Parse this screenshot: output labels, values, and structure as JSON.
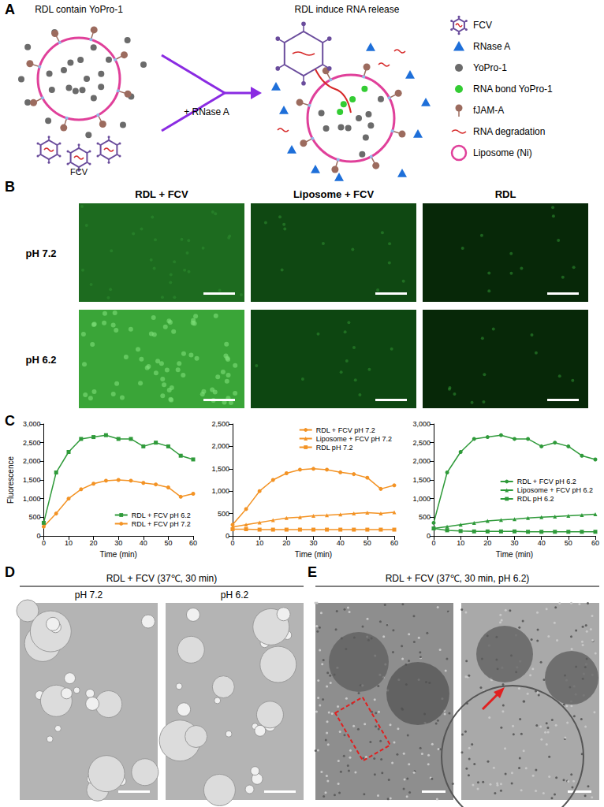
{
  "panel_labels": [
    "A",
    "B",
    "C",
    "D",
    "E"
  ],
  "schematic": {
    "left_title": "RDL contain YoPro-1",
    "right_title": "RDL induce RNA release",
    "arrow_label": "+ RNase A",
    "virus_label": "FCV",
    "key": [
      "FCV",
      "RNase A",
      "YoPro-1",
      "RNA bond YoPro-1",
      "fJAM-A",
      "RNA degradation",
      "Liposome (Ni)"
    ]
  },
  "fluorescence_images": {
    "columns": [
      "RDL + FCV",
      "Liposome + FCV",
      "RDL"
    ],
    "rows": [
      "pH 7.2",
      "pH 6.2"
    ]
  },
  "panel_D": {
    "title": "RDL + FCV (37℃, 30 min)",
    "images": [
      "pH 7.2",
      "pH 6.2"
    ]
  },
  "panel_E": {
    "title": "RDL + FCV (37℃, 30 min, pH 6.2)"
  },
  "chart_data": [
    {
      "type": "line",
      "xlabel": "Time (min)",
      "ylabel": "Fluorescence",
      "x": [
        0,
        5,
        10,
        15,
        20,
        25,
        30,
        35,
        40,
        45,
        50,
        55,
        60
      ],
      "xlim": [
        0,
        60
      ],
      "xticks": [
        0,
        10,
        20,
        30,
        40,
        50,
        60
      ],
      "ylim": [
        0,
        3000
      ],
      "yticks": [
        0,
        500,
        1000,
        1500,
        2000,
        2500,
        3000
      ],
      "grid": false,
      "legend": "lower right",
      "series": [
        {
          "name": "RDL + FCV pH 6.2",
          "color": "#2f9a3a",
          "marker": "square",
          "values": [
            350,
            1700,
            2250,
            2600,
            2650,
            2700,
            2600,
            2600,
            2400,
            2500,
            2400,
            2150,
            2050
          ]
        },
        {
          "name": "RDL + FCV pH 7.2",
          "color": "#f39325",
          "marker": "circle",
          "values": [
            250,
            600,
            1000,
            1250,
            1400,
            1480,
            1500,
            1480,
            1420,
            1380,
            1300,
            1050,
            1130
          ]
        }
      ]
    },
    {
      "type": "line",
      "xlabel": "Time (min)",
      "x": [
        0,
        5,
        10,
        15,
        20,
        25,
        30,
        35,
        40,
        45,
        50,
        55,
        60
      ],
      "xlim": [
        0,
        60
      ],
      "xticks": [
        0,
        10,
        20,
        30,
        40,
        50,
        60
      ],
      "ylim": [
        0,
        2500
      ],
      "yticks": [
        0,
        500,
        1000,
        1500,
        2000,
        2500
      ],
      "grid": false,
      "legend": "upper right",
      "series": [
        {
          "name": "RDL + FCV pH 7.2",
          "color": "#f39325",
          "marker": "circle",
          "values": [
            250,
            600,
            1000,
            1250,
            1400,
            1480,
            1500,
            1480,
            1420,
            1380,
            1300,
            1050,
            1130
          ]
        },
        {
          "name": "Liposome + FCV pH 7.2",
          "color": "#f39325",
          "marker": "triangle",
          "values": [
            200,
            250,
            300,
            350,
            400,
            420,
            450,
            460,
            480,
            500,
            520,
            500,
            530
          ]
        },
        {
          "name": "RDL pH 7.2",
          "color": "#f39325",
          "marker": "square",
          "values": [
            150,
            150,
            140,
            140,
            140,
            140,
            140,
            140,
            140,
            140,
            140,
            140,
            140
          ]
        }
      ]
    },
    {
      "type": "line",
      "xlabel": "Time (min)",
      "x": [
        0,
        5,
        10,
        15,
        20,
        25,
        30,
        35,
        40,
        45,
        50,
        55,
        60
      ],
      "xlim": [
        0,
        60
      ],
      "xticks": [
        0,
        10,
        20,
        30,
        40,
        50,
        60
      ],
      "ylim": [
        0,
        3000
      ],
      "yticks": [
        0,
        500,
        1000,
        1500,
        2000,
        2500,
        3000
      ],
      "grid": false,
      "legend": "right",
      "series": [
        {
          "name": "RDL + FCV pH 6.2",
          "color": "#2f9a3a",
          "marker": "circle",
          "values": [
            350,
            1700,
            2250,
            2600,
            2650,
            2700,
            2600,
            2600,
            2400,
            2500,
            2400,
            2150,
            2050
          ]
        },
        {
          "name": "Liposome + FCV pH 6.2",
          "color": "#2f9a3a",
          "marker": "triangle",
          "values": [
            200,
            250,
            300,
            350,
            400,
            430,
            450,
            480,
            500,
            520,
            540,
            560,
            580
          ]
        },
        {
          "name": "RDL pH 6.2",
          "color": "#2f9a3a",
          "marker": "square",
          "values": [
            200,
            150,
            130,
            120,
            120,
            120,
            120,
            110,
            110,
            110,
            110,
            110,
            110
          ]
        }
      ]
    }
  ]
}
